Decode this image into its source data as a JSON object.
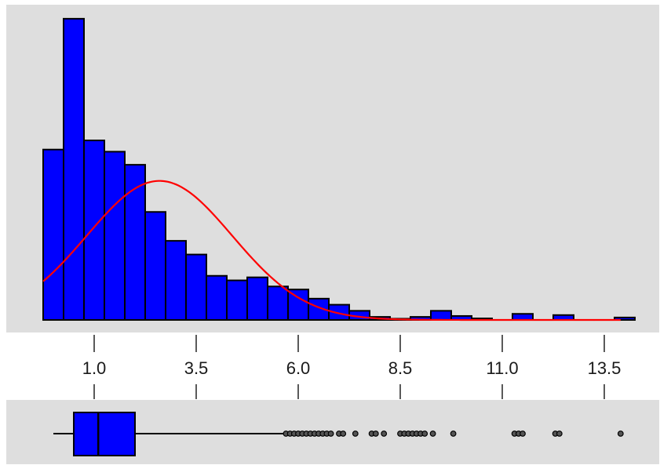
{
  "chart_data": [
    {
      "type": "bar",
      "subtype": "histogram",
      "title": "",
      "xlabel": "",
      "ylabel": "",
      "xlim": [
        -0.3,
        14.2
      ],
      "ylim": [
        0,
        1.0
      ],
      "bin_width": 0.5,
      "bin_edges": [
        -0.25,
        0.25,
        0.75,
        1.25,
        1.75,
        2.25,
        2.75,
        3.25,
        3.75,
        4.25,
        4.75,
        5.25,
        5.75,
        6.25,
        6.75,
        7.25,
        7.75,
        8.25,
        8.75,
        9.25,
        9.75,
        10.25,
        10.75,
        11.25,
        11.75,
        12.25,
        12.75,
        13.25,
        13.75,
        14.25
      ],
      "values": [
        0.56,
        0.99,
        0.59,
        0.553,
        0.51,
        0.355,
        0.26,
        0.215,
        0.145,
        0.13,
        0.14,
        0.11,
        0.1,
        0.07,
        0.05,
        0.03,
        0.01,
        0.004,
        0.01,
        0.03,
        0.013,
        0.005,
        0,
        0.02,
        0,
        0.016,
        0,
        0,
        0.008
      ],
      "x_ticks": [
        1.0,
        3.5,
        6.0,
        8.5,
        11.0,
        13.5
      ],
      "x_tick_labels": [
        "1.0",
        "3.5",
        "6.0",
        "8.5",
        "11.0",
        "13.5"
      ],
      "overlay": {
        "type": "line",
        "name": "normal density fit",
        "mean": 2.6,
        "sd": 1.78,
        "peak": 0.457,
        "x_range": [
          -0.25,
          13.9
        ]
      },
      "grid": false,
      "colors": {
        "panel_background": "#dedede",
        "bar_fill": "#0000ff",
        "bar_border": "#000000",
        "density_line": "#ff0000"
      }
    },
    {
      "type": "boxplot",
      "orientation": "horizontal",
      "whisker_low": 0.0,
      "q1": 0.5,
      "median": 1.1,
      "q3": 2.0,
      "whisker_high": 5.65,
      "outliers": [
        5.7,
        5.8,
        5.9,
        6.0,
        6.1,
        6.2,
        6.3,
        6.4,
        6.5,
        6.6,
        6.7,
        6.8,
        7.0,
        7.1,
        7.4,
        7.8,
        7.9,
        8.1,
        8.5,
        8.6,
        8.7,
        8.8,
        8.9,
        9.0,
        9.1,
        9.3,
        9.8,
        11.3,
        11.4,
        11.5,
        12.3,
        12.4,
        13.9
      ],
      "colors": {
        "panel_background": "#dedede",
        "box_fill": "#0000ff",
        "line": "#000000"
      }
    }
  ]
}
